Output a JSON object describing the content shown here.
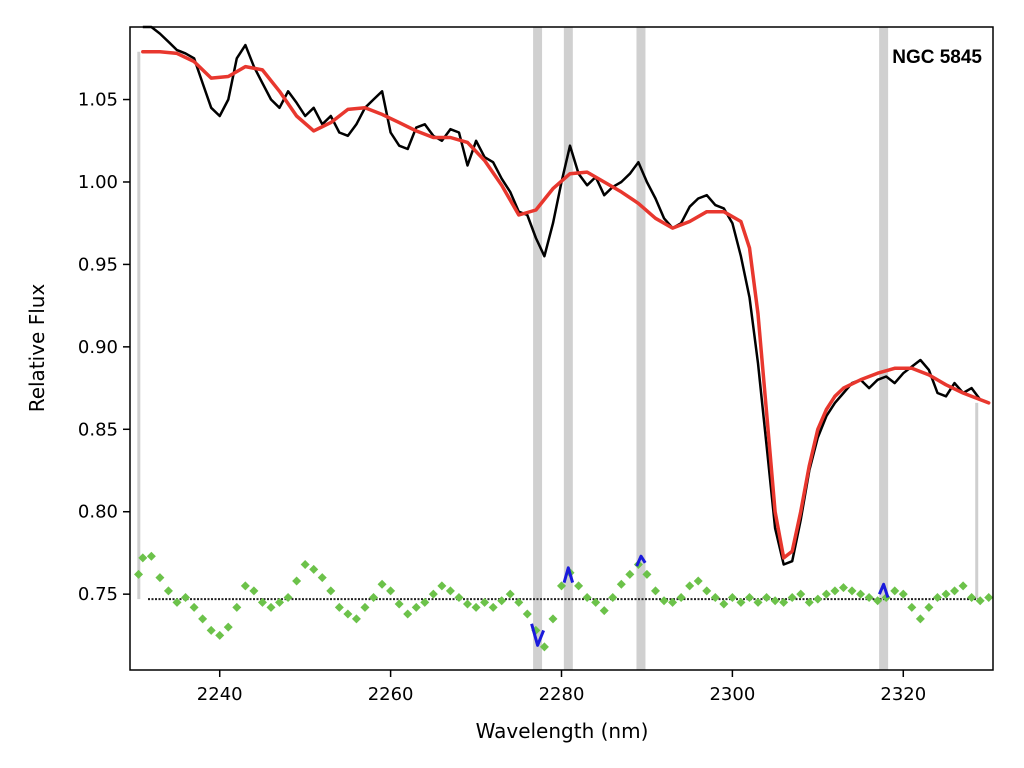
{
  "chart_data": {
    "type": "line",
    "xlabel": "Wavelength (nm)",
    "ylabel": "Relative Flux",
    "annotation": "NGC 5845",
    "xlim": [
      2229.5,
      2330.5
    ],
    "ylim": [
      0.704,
      1.094
    ],
    "xticks": [
      2240,
      2260,
      2280,
      2300,
      2320
    ],
    "yticks": [
      0.75,
      0.8,
      0.85,
      0.9,
      0.95,
      1.0,
      1.05
    ],
    "ytick_labels": [
      "0.75",
      "0.80",
      "0.85",
      "0.90",
      "0.95",
      "1.00",
      "1.05"
    ],
    "grid": false,
    "baseline": 0.747,
    "masked_lines_nm": [
      2277.2,
      2280.8,
      2289.3,
      2317.7
    ],
    "series": [
      {
        "role": "observed",
        "color": "#000000",
        "x": [
          2231,
          2232,
          2233,
          2234,
          2235,
          2236,
          2237,
          2238,
          2239,
          2240,
          2241,
          2242,
          2243,
          2244,
          2245,
          2246,
          2247,
          2248,
          2249,
          2250,
          2251,
          2252,
          2253,
          2254,
          2255,
          2256,
          2257,
          2258,
          2259,
          2260,
          2261,
          2262,
          2263,
          2264,
          2265,
          2266,
          2267,
          2268,
          2269,
          2270,
          2271,
          2272,
          2273,
          2274,
          2275,
          2276,
          2277,
          2278,
          2279,
          2280,
          2281,
          2282,
          2283,
          2284,
          2285,
          2286,
          2287,
          2288,
          2289,
          2290,
          2291,
          2292,
          2293,
          2294,
          2295,
          2296,
          2297,
          2298,
          2299,
          2300,
          2301,
          2302,
          2303,
          2304,
          2305,
          2306,
          2307,
          2308,
          2309,
          2310,
          2311,
          2312,
          2313,
          2314,
          2315,
          2316,
          2317,
          2318,
          2319,
          2320,
          2321,
          2322,
          2323,
          2324,
          2325,
          2326,
          2327,
          2328,
          2329,
          2330
        ],
        "y": [
          1.095,
          1.1,
          1.09,
          1.085,
          1.08,
          1.078,
          1.075,
          1.06,
          1.045,
          1.04,
          1.05,
          1.075,
          1.083,
          1.07,
          1.06,
          1.05,
          1.045,
          1.055,
          1.048,
          1.04,
          1.045,
          1.035,
          1.04,
          1.03,
          1.028,
          1.035,
          1.045,
          1.05,
          1.055,
          1.03,
          1.022,
          1.02,
          1.033,
          1.035,
          1.028,
          1.025,
          1.032,
          1.03,
          1.01,
          1.025,
          1.015,
          1.012,
          1.002,
          0.994,
          0.982,
          0.98,
          0.966,
          0.955,
          0.975,
          1.0,
          1.022,
          1.005,
          0.998,
          1.003,
          0.992,
          0.997,
          1.0,
          1.005,
          1.012,
          1.0,
          0.99,
          0.978,
          0.972,
          0.975,
          0.985,
          0.99,
          0.992,
          0.986,
          0.984,
          0.975,
          0.955,
          0.93,
          0.89,
          0.84,
          0.79,
          0.768,
          0.77,
          0.795,
          0.825,
          0.845,
          0.858,
          0.866,
          0.872,
          0.878,
          0.88,
          0.875,
          0.88,
          0.882,
          0.878,
          0.884,
          0.888,
          0.892,
          0.886,
          0.872,
          0.87,
          0.878,
          0.872,
          0.875,
          0.868,
          0.866
        ]
      },
      {
        "role": "model",
        "color": "#e8372e",
        "x": [
          2231,
          2233,
          2235,
          2237,
          2239,
          2241,
          2243,
          2245,
          2247,
          2249,
          2251,
          2253,
          2255,
          2257,
          2259,
          2261,
          2263,
          2265,
          2267,
          2269,
          2271,
          2273,
          2275,
          2277,
          2279,
          2281,
          2283,
          2285,
          2287,
          2289,
          2291,
          2293,
          2295,
          2297,
          2299,
          2301,
          2302,
          2303,
          2304,
          2305,
          2306,
          2307,
          2308,
          2309,
          2310,
          2311,
          2312,
          2313,
          2315,
          2317,
          2319,
          2321,
          2323,
          2325,
          2327,
          2329,
          2330
        ],
        "y": [
          1.079,
          1.079,
          1.078,
          1.073,
          1.063,
          1.064,
          1.07,
          1.068,
          1.055,
          1.04,
          1.031,
          1.036,
          1.044,
          1.045,
          1.041,
          1.036,
          1.031,
          1.027,
          1.027,
          1.024,
          1.013,
          0.998,
          0.98,
          0.983,
          0.996,
          1.005,
          1.006,
          1.0,
          0.994,
          0.987,
          0.978,
          0.972,
          0.976,
          0.982,
          0.982,
          0.976,
          0.96,
          0.92,
          0.86,
          0.8,
          0.772,
          0.776,
          0.8,
          0.828,
          0.85,
          0.862,
          0.87,
          0.875,
          0.88,
          0.884,
          0.887,
          0.887,
          0.883,
          0.877,
          0.872,
          0.868,
          0.866
        ]
      },
      {
        "role": "residual",
        "color": "#6cc24a",
        "x": [
          2230.5,
          2231,
          2232,
          2233,
          2234,
          2235,
          2236,
          2237,
          2238,
          2239,
          2240,
          2241,
          2242,
          2243,
          2244,
          2245,
          2246,
          2247,
          2248,
          2249,
          2250,
          2251,
          2252,
          2253,
          2254,
          2255,
          2256,
          2257,
          2258,
          2259,
          2260,
          2261,
          2262,
          2263,
          2264,
          2265,
          2266,
          2267,
          2268,
          2269,
          2270,
          2271,
          2272,
          2273,
          2274,
          2275,
          2276,
          2277,
          2278,
          2279,
          2280,
          2281,
          2282,
          2283,
          2284,
          2285,
          2286,
          2287,
          2288,
          2289,
          2290,
          2291,
          2292,
          2293,
          2294,
          2295,
          2296,
          2297,
          2298,
          2299,
          2300,
          2301,
          2302,
          2303,
          2304,
          2305,
          2306,
          2307,
          2308,
          2309,
          2310,
          2311,
          2312,
          2313,
          2314,
          2315,
          2316,
          2317,
          2318,
          2319,
          2320,
          2321,
          2322,
          2323,
          2324,
          2325,
          2326,
          2327,
          2328,
          2329,
          2330
        ],
        "y": [
          0.762,
          0.772,
          0.773,
          0.76,
          0.752,
          0.745,
          0.748,
          0.742,
          0.735,
          0.728,
          0.725,
          0.73,
          0.742,
          0.755,
          0.752,
          0.745,
          0.742,
          0.745,
          0.748,
          0.758,
          0.768,
          0.765,
          0.76,
          0.752,
          0.742,
          0.738,
          0.735,
          0.742,
          0.748,
          0.756,
          0.752,
          0.744,
          0.738,
          0.742,
          0.745,
          0.75,
          0.755,
          0.752,
          0.748,
          0.744,
          0.742,
          0.745,
          0.742,
          0.746,
          0.75,
          0.745,
          0.738,
          0.728,
          0.718,
          0.735,
          0.755,
          0.763,
          0.755,
          0.748,
          0.745,
          0.74,
          0.748,
          0.756,
          0.762,
          0.768,
          0.762,
          0.752,
          0.746,
          0.745,
          0.748,
          0.755,
          0.758,
          0.752,
          0.748,
          0.744,
          0.748,
          0.745,
          0.748,
          0.745,
          0.748,
          0.746,
          0.745,
          0.748,
          0.75,
          0.745,
          0.747,
          0.75,
          0.752,
          0.754,
          0.752,
          0.75,
          0.748,
          0.746,
          0.748,
          0.752,
          0.75,
          0.742,
          0.735,
          0.742,
          0.748,
          0.75,
          0.752,
          0.755,
          0.748,
          0.746,
          0.748
        ]
      },
      {
        "role": "residual-masked",
        "color": "#1a1adb",
        "segments": [
          {
            "x": [
              2276.5,
              2277.2,
              2277.9
            ],
            "y": [
              0.732,
              0.719,
              0.728
            ]
          },
          {
            "x": [
              2280.3,
              2280.8,
              2281.3
            ],
            "y": [
              0.757,
              0.766,
              0.757
            ]
          },
          {
            "x": [
              2288.8,
              2289.3,
              2289.8
            ],
            "y": [
              0.767,
              0.773,
              0.769
            ]
          },
          {
            "x": [
              2317.2,
              2317.7,
              2318.2
            ],
            "y": [
              0.75,
              0.756,
              0.748
            ]
          }
        ]
      }
    ]
  }
}
